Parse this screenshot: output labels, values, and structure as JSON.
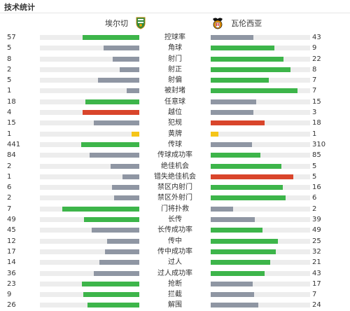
{
  "header": {
    "title": "技术统计"
  },
  "teams": {
    "home": {
      "name": "埃尔切",
      "logo": "elche-crest-icon"
    },
    "away": {
      "name": "瓦伦西亚",
      "logo": "valencia-bat-crest-icon"
    }
  },
  "colors": {
    "win": "#3db54a",
    "lose": "#8f96a3",
    "foul_card": "#d9452b",
    "yellow": "#f5c518",
    "track": "#ededed"
  },
  "stats": [
    {
      "label": "控球率",
      "left": "57",
      "right": "43",
      "lf": 0.57,
      "rf": 0.43,
      "lc": "win",
      "rc": "lose"
    },
    {
      "label": "角球",
      "left": "5",
      "right": "9",
      "lf": 0.357,
      "rf": 0.643,
      "lc": "lose",
      "rc": "win"
    },
    {
      "label": "射门",
      "left": "8",
      "right": "22",
      "lf": 0.267,
      "rf": 0.733,
      "lc": "lose",
      "rc": "win"
    },
    {
      "label": "射正",
      "left": "2",
      "right": "8",
      "lf": 0.2,
      "rf": 0.8,
      "lc": "lose",
      "rc": "win"
    },
    {
      "label": "射偏",
      "left": "5",
      "right": "7",
      "lf": 0.417,
      "rf": 0.583,
      "lc": "lose",
      "rc": "win"
    },
    {
      "label": "被封堵",
      "left": "1",
      "right": "7",
      "lf": 0.125,
      "rf": 0.875,
      "lc": "lose",
      "rc": "win"
    },
    {
      "label": "任意球",
      "left": "18",
      "right": "15",
      "lf": 0.545,
      "rf": 0.455,
      "lc": "win",
      "rc": "lose"
    },
    {
      "label": "越位",
      "left": "4",
      "right": "3",
      "lf": 0.571,
      "rf": 0.429,
      "lc": "foul_card",
      "rc": "lose"
    },
    {
      "label": "犯规",
      "left": "15",
      "right": "18",
      "lf": 0.455,
      "rf": 0.545,
      "lc": "lose",
      "rc": "foul_card"
    },
    {
      "label": "黄牌",
      "left": "1",
      "right": "1",
      "lf": 0.08,
      "rf": 0.08,
      "lc": "yellow",
      "rc": "yellow"
    },
    {
      "label": "传球",
      "left": "441",
      "right": "310",
      "lf": 0.587,
      "rf": 0.413,
      "lc": "win",
      "rc": "lose"
    },
    {
      "label": "传球成功率",
      "left": "84",
      "right": "85",
      "lf": 0.497,
      "rf": 0.503,
      "lc": "lose",
      "rc": "win"
    },
    {
      "label": "绝佳机会",
      "left": "2",
      "right": "5",
      "lf": 0.286,
      "rf": 0.714,
      "lc": "lose",
      "rc": "win"
    },
    {
      "label": "错失绝佳机会",
      "left": "1",
      "right": "5",
      "lf": 0.167,
      "rf": 0.833,
      "lc": "lose",
      "rc": "foul_card"
    },
    {
      "label": "禁区内射门",
      "left": "6",
      "right": "16",
      "lf": 0.273,
      "rf": 0.727,
      "lc": "lose",
      "rc": "win"
    },
    {
      "label": "禁区外射门",
      "left": "2",
      "right": "6",
      "lf": 0.25,
      "rf": 0.75,
      "lc": "lose",
      "rc": "win"
    },
    {
      "label": "门将扑救",
      "left": "7",
      "right": "2",
      "lf": 0.778,
      "rf": 0.222,
      "lc": "win",
      "rc": "lose"
    },
    {
      "label": "长传",
      "left": "49",
      "right": "39",
      "lf": 0.557,
      "rf": 0.443,
      "lc": "win",
      "rc": "lose"
    },
    {
      "label": "长传成功率",
      "left": "45",
      "right": "49",
      "lf": 0.479,
      "rf": 0.521,
      "lc": "lose",
      "rc": "win"
    },
    {
      "label": "传中",
      "left": "12",
      "right": "25",
      "lf": 0.324,
      "rf": 0.676,
      "lc": "lose",
      "rc": "win"
    },
    {
      "label": "传中成功率",
      "left": "17",
      "right": "32",
      "lf": 0.347,
      "rf": 0.653,
      "lc": "lose",
      "rc": "win"
    },
    {
      "label": "过人",
      "left": "14",
      "right": "21",
      "lf": 0.4,
      "rf": 0.6,
      "lc": "lose",
      "rc": "win"
    },
    {
      "label": "过人成功率",
      "left": "36",
      "right": "43",
      "lf": 0.456,
      "rf": 0.544,
      "lc": "lose",
      "rc": "win"
    },
    {
      "label": "抢断",
      "left": "23",
      "right": "17",
      "lf": 0.575,
      "rf": 0.425,
      "lc": "win",
      "rc": "lose"
    },
    {
      "label": "拦截",
      "left": "9",
      "right": "7",
      "lf": 0.563,
      "rf": 0.437,
      "lc": "win",
      "rc": "lose"
    },
    {
      "label": "解围",
      "left": "26",
      "right": "24",
      "lf": 0.52,
      "rf": 0.48,
      "lc": "win",
      "rc": "lose"
    }
  ]
}
